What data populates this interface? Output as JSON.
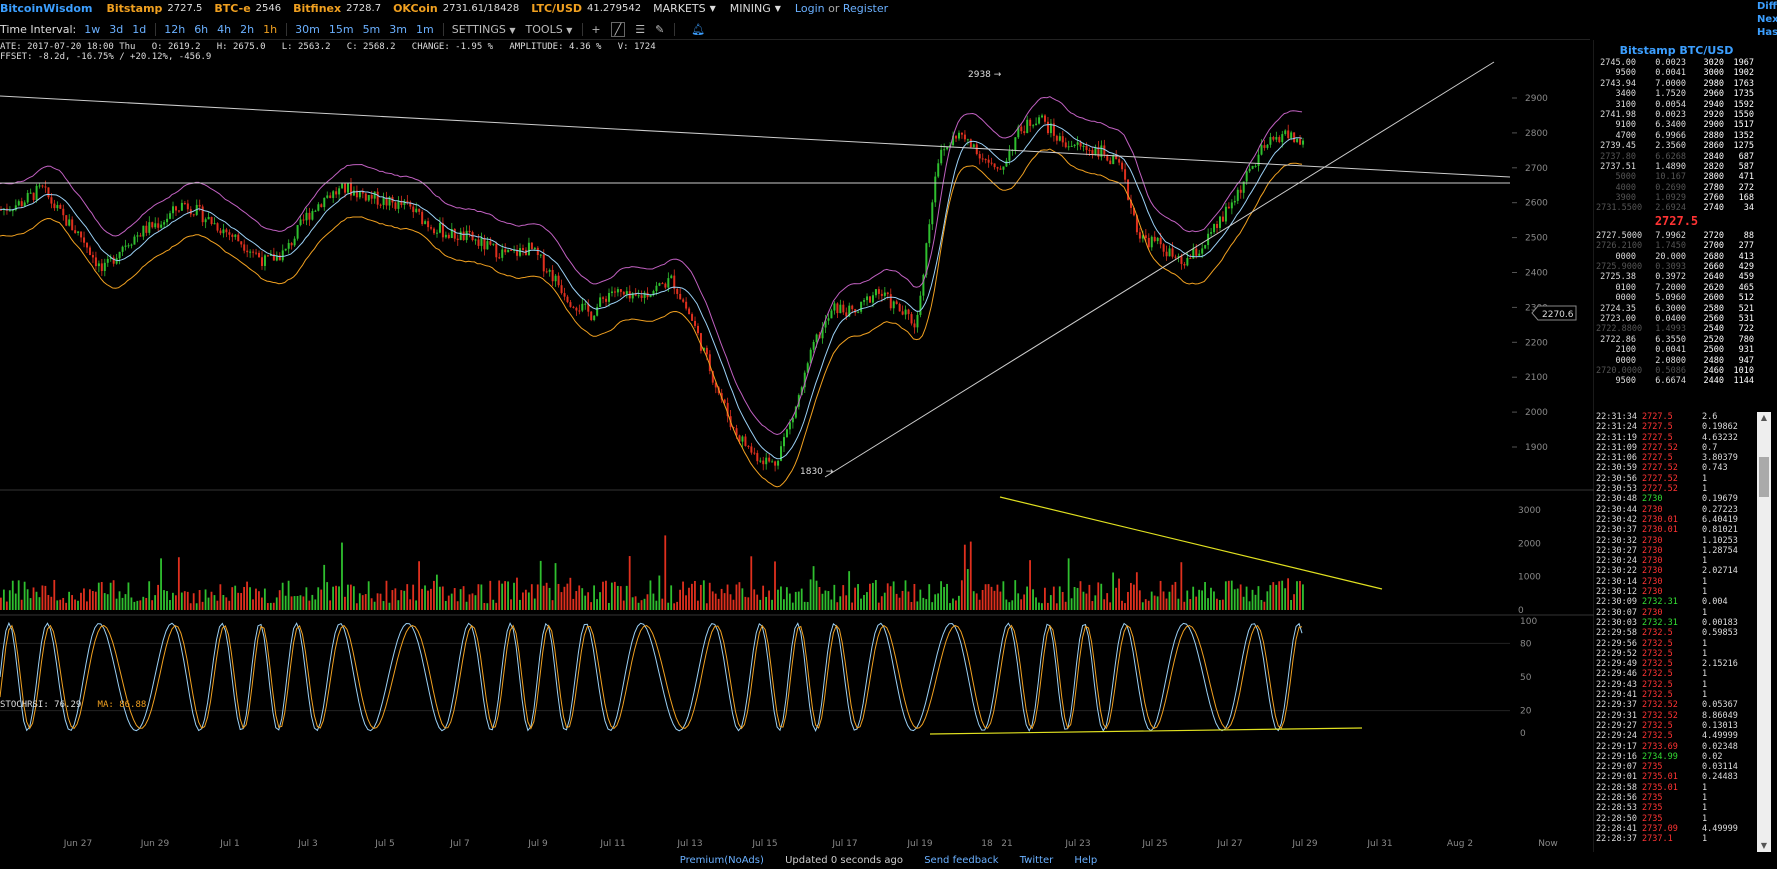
{
  "topbar": {
    "brand": "BitcoinWisdom",
    "exchanges": [
      {
        "name": "Bitstamp",
        "price": "2727.5"
      },
      {
        "name": "BTC-e",
        "price": "2546"
      },
      {
        "name": "Bitfinex",
        "price": "2728.7"
      },
      {
        "name": "OKCoin",
        "price": "2731.61/18428"
      },
      {
        "name": "LTC/USD",
        "price": "41.279542"
      }
    ],
    "markets_label": "MARKETS",
    "mining_label": "MINING",
    "login_label": "Login",
    "or_label": "or",
    "register_label": "Register",
    "right_cut": [
      "Diffic",
      "Next:",
      "Hash"
    ]
  },
  "toolbar": {
    "interval_label": "Time Interval:",
    "intervals": [
      "1w",
      "3d",
      "1d",
      "12h",
      "6h",
      "4h",
      "2h",
      "1h",
      "30m",
      "15m",
      "5m",
      "3m",
      "1m"
    ],
    "active_interval": "1h",
    "settings_label": "SETTINGS",
    "tools_label": "TOOLS"
  },
  "info": {
    "line1": "ATE: 2017-07-20 18:00 Thu   O: 2619.2   H: 2675.0   L: 2563.2   C: 2568.2   CHANGE: -1.95 %   AMPLITUDE: 4.36 %   V: 1724",
    "line2": "FFSET: -8.2d, -16.75% / +20.12%, -456.9",
    "stoch_label": "STOCHRSI: 76.29",
    "ma_label": "MA: 86.88"
  },
  "chart_data": {
    "type": "candlestick",
    "price_axis_ticks": [
      "2900",
      "2800",
      "2700",
      "2600",
      "2500",
      "2400",
      "2300",
      "2200",
      "2100",
      "2000",
      "1900"
    ],
    "volume_axis_ticks": [
      "3000",
      "2000",
      "1000",
      "0"
    ],
    "stoch_axis_ticks": [
      "100",
      "80",
      "50",
      "20",
      "0"
    ],
    "x_ticks": [
      "Jun 27",
      "Jun 29",
      "Jul 1",
      "Jul 3",
      "Jul 5",
      "Jul 7",
      "Jul 9",
      "Jul 11",
      "Jul 13",
      "Jul 15",
      "Jul 17",
      "Jul 19",
      "18",
      "21",
      "Jul 23",
      "Jul 25",
      "Jul 27",
      "Jul 29",
      "Jul 31",
      "Aug 2",
      "Now"
    ],
    "annotations": {
      "high": "2938",
      "low": "1830",
      "cursor_price": "2270.6"
    },
    "price_path": [
      2580,
      2600,
      2640,
      2560,
      2500,
      2400,
      2480,
      2520,
      2550,
      2600,
      2560,
      2520,
      2480,
      2430,
      2460,
      2560,
      2620,
      2640,
      2620,
      2600,
      2590,
      2540,
      2510,
      2500,
      2470,
      2450,
      2470,
      2400,
      2320,
      2280,
      2350,
      2320,
      2350,
      2380,
      2260,
      2100,
      1950,
      1880,
      1850,
      2000,
      2200,
      2300,
      2280,
      2350,
      2300,
      2250,
      2720,
      2800,
      2750,
      2680,
      2800,
      2850,
      2780,
      2760,
      2750,
      2700,
      2500,
      2480,
      2420,
      2470,
      2550,
      2650,
      2750,
      2800,
      2770
    ]
  },
  "orderbook": {
    "title": "Bitstamp BTC/USD",
    "asks": [
      {
        "price": "2745.00",
        "amount": "0.0023",
        "sum": "3020",
        "vol": "1967",
        "dim": false
      },
      {
        "price": "9500",
        "amount": "0.0041",
        "sum": "3000",
        "vol": "1902",
        "dim": false
      },
      {
        "price": "2743.94",
        "amount": "7.0000",
        "sum": "2980",
        "vol": "1763",
        "dim": false
      },
      {
        "price": "3400",
        "amount": "1.7520",
        "sum": "2960",
        "vol": "1735",
        "dim": false
      },
      {
        "price": "3100",
        "amount": "0.0054",
        "sum": "2940",
        "vol": "1592",
        "dim": false
      },
      {
        "price": "2741.98",
        "amount": "0.0023",
        "sum": "2920",
        "vol": "1550",
        "dim": false
      },
      {
        "price": "9100",
        "amount": "6.3400",
        "sum": "2900",
        "vol": "1517",
        "dim": false
      },
      {
        "price": "4700",
        "amount": "6.9966",
        "sum": "2880",
        "vol": "1352",
        "dim": false
      },
      {
        "price": "2739.45",
        "amount": "2.3560",
        "sum": "2860",
        "vol": "1275",
        "dim": false
      },
      {
        "price": "2737.80",
        "amount": "6.6268",
        "sum": "2840",
        "vol": "687",
        "dim": true
      },
      {
        "price": "2737.51",
        "amount": "1.4890",
        "sum": "2820",
        "vol": "587",
        "dim": false
      },
      {
        "price": "5000",
        "amount": "10.167",
        "sum": "2800",
        "vol": "471",
        "dim": true
      },
      {
        "price": "4000",
        "amount": "0.2690",
        "sum": "2780",
        "vol": "272",
        "dim": true
      },
      {
        "price": "3900",
        "amount": "1.0929",
        "sum": "2760",
        "vol": "168",
        "dim": true
      },
      {
        "price": "2731.5500",
        "amount": "2.6924",
        "sum": "2740",
        "vol": "34",
        "dim": true
      }
    ],
    "mid_price": "2727.5",
    "bids": [
      {
        "price": "2727.5000",
        "amount": "7.9962",
        "sum": "2720",
        "vol": "88",
        "dim": false
      },
      {
        "price": "2726.2100",
        "amount": "1.7450",
        "sum": "2700",
        "vol": "277",
        "dim": true
      },
      {
        "price": "0000",
        "amount": "20.000",
        "sum": "2680",
        "vol": "413",
        "dim": false
      },
      {
        "price": "2725.9000",
        "amount": "0.3093",
        "sum": "2660",
        "vol": "429",
        "dim": true
      },
      {
        "price": "2725.38",
        "amount": "0.3972",
        "sum": "2640",
        "vol": "459",
        "dim": false
      },
      {
        "price": "0100",
        "amount": "7.2000",
        "sum": "2620",
        "vol": "465",
        "dim": false
      },
      {
        "price": "0000",
        "amount": "5.0960",
        "sum": "2600",
        "vol": "512",
        "dim": false
      },
      {
        "price": "2724.35",
        "amount": "6.3000",
        "sum": "2580",
        "vol": "521",
        "dim": false
      },
      {
        "price": "2723.00",
        "amount": "0.0400",
        "sum": "2560",
        "vol": "531",
        "dim": false
      },
      {
        "price": "2722.8800",
        "amount": "1.4993",
        "sum": "2540",
        "vol": "722",
        "dim": true
      },
      {
        "price": "2722.86",
        "amount": "6.3550",
        "sum": "2520",
        "vol": "780",
        "dim": false
      },
      {
        "price": "2100",
        "amount": "0.0041",
        "sum": "2500",
        "vol": "931",
        "dim": false
      },
      {
        "price": "0000",
        "amount": "2.0800",
        "sum": "2480",
        "vol": "947",
        "dim": false
      },
      {
        "price": "2720.0000",
        "amount": "0.5086",
        "sum": "2460",
        "vol": "1010",
        "dim": true
      },
      {
        "price": "9500",
        "amount": "6.6674",
        "sum": "2440",
        "vol": "1144",
        "dim": false
      }
    ]
  },
  "trades": [
    {
      "time": "22:31:34",
      "price": "2727.5",
      "amount": "2.6",
      "side": "sell"
    },
    {
      "time": "22:31:24",
      "price": "2727.5",
      "amount": "0.19862",
      "side": "sell"
    },
    {
      "time": "22:31:19",
      "price": "2727.5",
      "amount": "4.63232",
      "side": "sell"
    },
    {
      "time": "22:31:09",
      "price": "2727.52",
      "amount": "0.7",
      "side": "sell"
    },
    {
      "time": "22:31:06",
      "price": "2727.5",
      "amount": "3.80379",
      "side": "sell"
    },
    {
      "time": "22:30:59",
      "price": "2727.52",
      "amount": "0.743",
      "side": "sell"
    },
    {
      "time": "22:30:56",
      "price": "2727.52",
      "amount": "1",
      "side": "sell"
    },
    {
      "time": "22:30:53",
      "price": "2727.52",
      "amount": "1",
      "side": "sell"
    },
    {
      "time": "22:30:48",
      "price": "2730",
      "amount": "0.19679",
      "side": "buy"
    },
    {
      "time": "22:30:44",
      "price": "2730",
      "amount": "0.27223",
      "side": "sell"
    },
    {
      "time": "22:30:42",
      "price": "2730.01",
      "amount": "6.40419",
      "side": "sell"
    },
    {
      "time": "22:30:37",
      "price": "2730.01",
      "amount": "0.81021",
      "side": "sell"
    },
    {
      "time": "22:30:32",
      "price": "2730",
      "amount": "1.10253",
      "side": "sell"
    },
    {
      "time": "22:30:27",
      "price": "2730",
      "amount": "1.28754",
      "side": "sell"
    },
    {
      "time": "22:30:24",
      "price": "2730",
      "amount": "1",
      "side": "sell"
    },
    {
      "time": "22:30:22",
      "price": "2730",
      "amount": "2.02714",
      "side": "sell"
    },
    {
      "time": "22:30:14",
      "price": "2730",
      "amount": "1",
      "side": "sell"
    },
    {
      "time": "22:30:12",
      "price": "2730",
      "amount": "1",
      "side": "sell"
    },
    {
      "time": "22:30:09",
      "price": "2732.31",
      "amount": "0.004",
      "side": "buy"
    },
    {
      "time": "22:30:07",
      "price": "2730",
      "amount": "1",
      "side": "sell"
    },
    {
      "time": "22:30:03",
      "price": "2732.31",
      "amount": "0.00183",
      "side": "buy"
    },
    {
      "time": "22:29:58",
      "price": "2732.5",
      "amount": "0.59853",
      "side": "sell"
    },
    {
      "time": "22:29:56",
      "price": "2732.5",
      "amount": "1",
      "side": "sell"
    },
    {
      "time": "22:29:52",
      "price": "2732.5",
      "amount": "1",
      "side": "sell"
    },
    {
      "time": "22:29:49",
      "price": "2732.5",
      "amount": "2.15216",
      "side": "sell"
    },
    {
      "time": "22:29:46",
      "price": "2732.5",
      "amount": "1",
      "side": "sell"
    },
    {
      "time": "22:29:43",
      "price": "2732.5",
      "amount": "1",
      "side": "sell"
    },
    {
      "time": "22:29:41",
      "price": "2732.5",
      "amount": "1",
      "side": "sell"
    },
    {
      "time": "22:29:37",
      "price": "2732.52",
      "amount": "0.05367",
      "side": "sell"
    },
    {
      "time": "22:29:31",
      "price": "2732.52",
      "amount": "8.86049",
      "side": "sell"
    },
    {
      "time": "22:29:27",
      "price": "2732.5",
      "amount": "0.13013",
      "side": "sell"
    },
    {
      "time": "22:29:24",
      "price": "2732.5",
      "amount": "4.49999",
      "side": "sell"
    },
    {
      "time": "22:29:17",
      "price": "2733.69",
      "amount": "0.02348",
      "side": "sell"
    },
    {
      "time": "22:29:16",
      "price": "2734.99",
      "amount": "0.02",
      "side": "buy"
    },
    {
      "time": "22:29:07",
      "price": "2735",
      "amount": "0.03114",
      "side": "sell"
    },
    {
      "time": "22:29:01",
      "price": "2735.01",
      "amount": "0.24483",
      "side": "sell"
    },
    {
      "time": "22:28:58",
      "price": "2735.01",
      "amount": "1",
      "side": "sell"
    },
    {
      "time": "22:28:56",
      "price": "2735",
      "amount": "1",
      "side": "sell"
    },
    {
      "time": "22:28:53",
      "price": "2735",
      "amount": "1",
      "side": "sell"
    },
    {
      "time": "22:28:50",
      "price": "2735",
      "amount": "1",
      "side": "sell"
    },
    {
      "time": "22:28:41",
      "price": "2737.09",
      "amount": "4.49999",
      "side": "sell"
    },
    {
      "time": "22:28:37",
      "price": "2737.1",
      "amount": "1",
      "side": "sell"
    }
  ],
  "footer": {
    "premium_label": "Premium(NoAds)",
    "status": "Updated 0 seconds ago",
    "feedback_label": "Send feedback",
    "twitter_label": "Twitter",
    "help_label": "Help"
  },
  "colors": {
    "up": "#2fbf2f",
    "down": "#e0301e",
    "accent": "#3c9fff",
    "brand_orange": "#f0a020"
  }
}
